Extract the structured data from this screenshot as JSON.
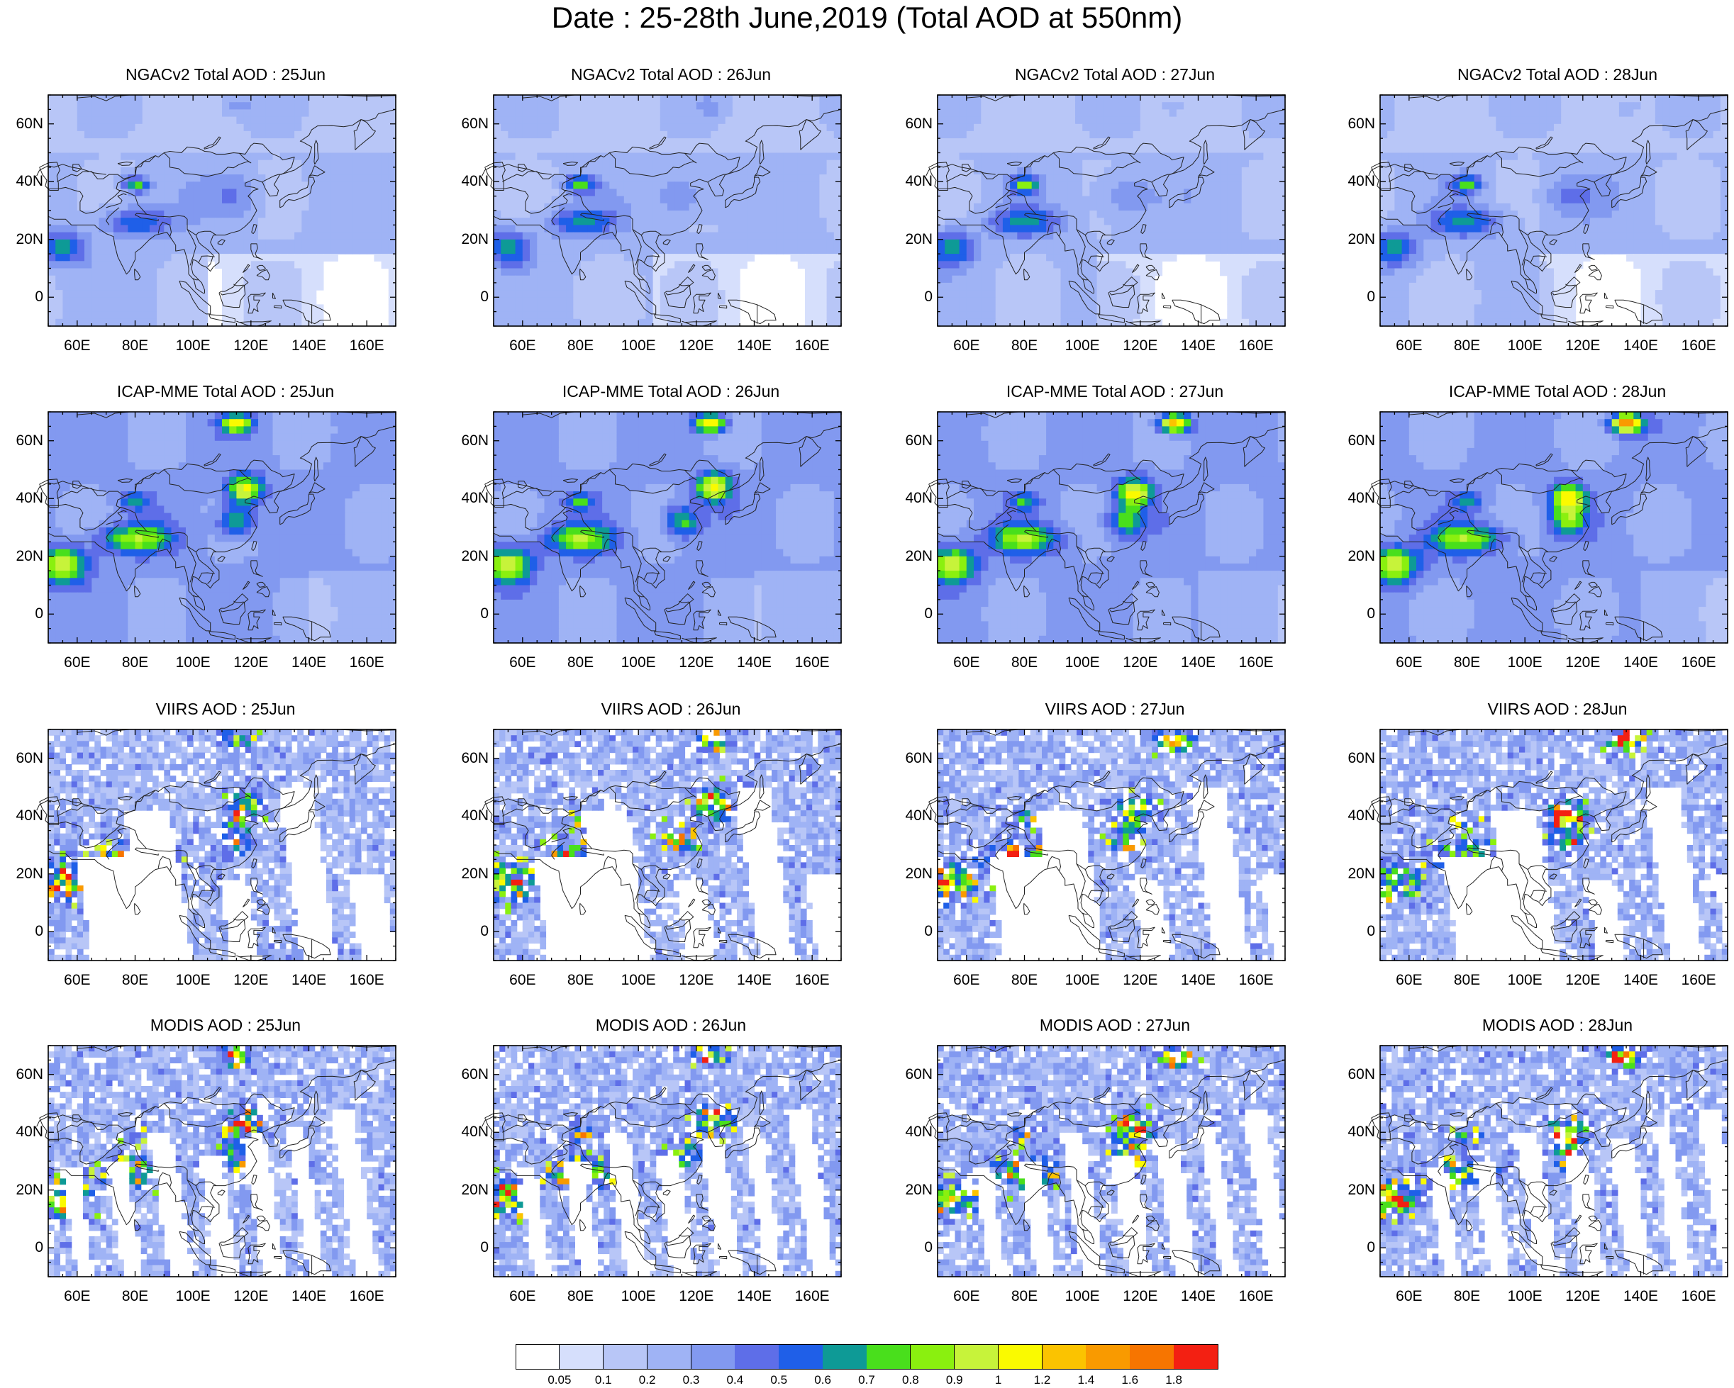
{
  "title": "Date : 25-28th June,2019 (Total AOD at 550nm)",
  "rows": [
    {
      "product": "ngac",
      "panels": [
        "NGACv2 Total AOD : 25Jun",
        "NGACv2 Total AOD : 26Jun",
        "NGACv2 Total AOD : 27Jun",
        "NGACv2 Total AOD : 28Jun"
      ]
    },
    {
      "product": "icap",
      "panels": [
        "ICAP-MME Total AOD : 25Jun",
        "ICAP-MME Total AOD : 26Jun",
        "ICAP-MME Total AOD : 27Jun",
        "ICAP-MME Total AOD : 28Jun"
      ]
    },
    {
      "product": "viirs",
      "panels": [
        "VIIRS AOD : 25Jun",
        "VIIRS AOD : 26Jun",
        "VIIRS AOD : 27Jun",
        "VIIRS AOD : 28Jun"
      ]
    },
    {
      "product": "modis",
      "panels": [
        "MODIS AOD : 25Jun",
        "MODIS AOD : 26Jun",
        "MODIS AOD : 27Jun",
        "MODIS AOD : 28Jun"
      ]
    }
  ],
  "lat_ticks": [
    "60N",
    "40N",
    "20N",
    "0"
  ],
  "lon_ticks": [
    "60E",
    "80E",
    "100E",
    "120E",
    "140E",
    "160E"
  ],
  "colorbar": {
    "labels": [
      "0.05",
      "0.1",
      "0.2",
      "0.3",
      "0.4",
      "0.5",
      "0.6",
      "0.7",
      "0.8",
      "0.9",
      "1",
      "1.2",
      "1.4",
      "1.6",
      "1.8"
    ],
    "colors": [
      "#ffffff",
      "#d6dffc",
      "#b8c6f7",
      "#9fb3f5",
      "#8299f0",
      "#5e6ee8",
      "#1f5fe8",
      "#0e9a96",
      "#49df1c",
      "#8af00f",
      "#c7f33a",
      "#fafa00",
      "#fbc300",
      "#f99a00",
      "#f77500",
      "#f32012"
    ]
  }
}
